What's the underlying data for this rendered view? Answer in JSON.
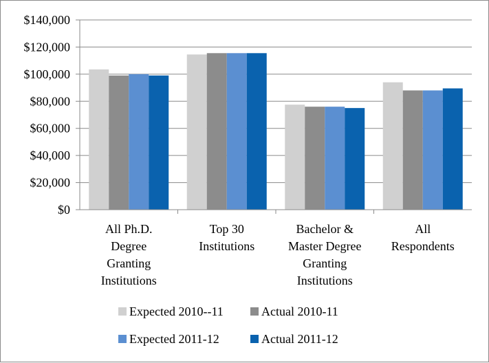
{
  "chart_data": {
    "type": "bar",
    "title": "",
    "xlabel": "",
    "ylabel": "",
    "ylim": [
      0,
      140000
    ],
    "y_ticks": [
      0,
      20000,
      40000,
      60000,
      80000,
      100000,
      120000,
      140000
    ],
    "y_tick_labels": [
      "$0",
      "$20,000",
      "$40,000",
      "$60,000",
      "$80,000",
      "$100,000",
      "$120,000",
      "$140,000"
    ],
    "grid": true,
    "legend_position": "bottom",
    "categories": [
      [
        "All Ph.D.",
        "Degree",
        "Granting",
        "Institutions"
      ],
      [
        "Top 30",
        "Institutions"
      ],
      [
        "Bachelor &",
        "Master Degree",
        "Granting",
        "Institutions"
      ],
      [
        "All",
        "Respondents"
      ]
    ],
    "series": [
      {
        "name": "Expected 2010--11",
        "color": "#d0d0d0",
        "values": [
          103500,
          114500,
          77500,
          94000
        ]
      },
      {
        "name": "Actual 2010-11",
        "color": "#8c8c8c",
        "values": [
          99000,
          115500,
          76000,
          88000
        ]
      },
      {
        "name": "Expected 2011-12",
        "color": "#5b8fd1",
        "values": [
          100000,
          115500,
          76000,
          88000
        ]
      },
      {
        "name": "Actual 2011-12",
        "color": "#0a62ae",
        "values": [
          99000,
          115500,
          75000,
          89500
        ]
      }
    ]
  }
}
